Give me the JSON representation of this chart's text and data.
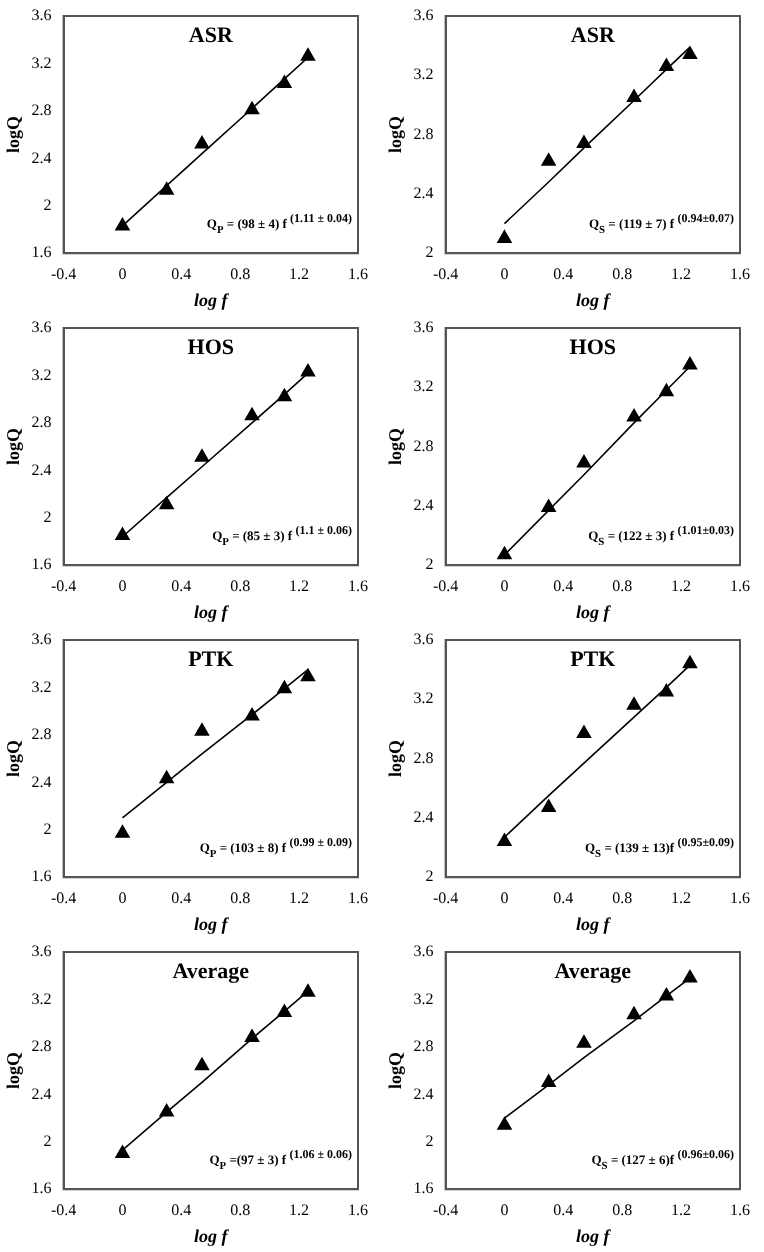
{
  "chart_data": [
    {
      "type": "scatter",
      "title": "ASR",
      "xlabel": "log f",
      "ylabel": "logQ",
      "x": [
        0,
        0.3,
        0.54,
        0.88,
        1.1,
        1.26
      ],
      "xlim": [
        -0.4,
        1.6
      ],
      "xticks": [
        -0.4,
        0,
        0.4,
        0.8,
        1.2,
        1.6
      ],
      "ylim": [
        1.6,
        3.6
      ],
      "yticks": [
        1.6,
        2,
        2.4,
        2.8,
        3.2,
        3.6
      ],
      "annotations": [
        "Q$_{P}$ = (98 ± 4) f $^{(1.11 ± 0.04)}$"
      ],
      "series": [
        {
          "type": "scatter",
          "marker": "triangle",
          "color": "#000000",
          "values": [
            1.83,
            2.13,
            2.52,
            2.81,
            3.03,
            3.26
          ]
        },
        {
          "type": "line",
          "marker": "none",
          "color": "#000000",
          "values": [
            1.83,
            2.17,
            2.44,
            2.82,
            3.07,
            3.25
          ]
        }
      ]
    },
    {
      "type": "scatter",
      "title": "ASR",
      "xlabel": "log f",
      "ylabel": "logQ",
      "x": [
        0,
        0.3,
        0.54,
        0.88,
        1.1,
        1.26
      ],
      "xlim": [
        -0.4,
        1.6
      ],
      "xticks": [
        -0.4,
        0,
        0.4,
        0.8,
        1.2,
        1.6
      ],
      "ylim": [
        2,
        3.6
      ],
      "yticks": [
        2,
        2.4,
        2.8,
        3.2,
        3.6
      ],
      "annotations": [
        "Q$_{S}$ = (119 ± 7) f $^{(0.94±0.07)}$"
      ],
      "series": [
        {
          "type": "scatter",
          "marker": "triangle",
          "color": "#000000",
          "values": [
            2.1,
            2.62,
            2.74,
            3.05,
            3.26,
            3.34
          ]
        },
        {
          "type": "line",
          "marker": "none",
          "color": "#000000",
          "values": [
            2.2,
            2.48,
            2.71,
            3.03,
            3.24,
            3.39
          ]
        }
      ]
    },
    {
      "type": "scatter",
      "title": "HOS",
      "xlabel": "log f",
      "ylabel": "logQ",
      "x": [
        0,
        0.3,
        0.54,
        0.88,
        1.1,
        1.26
      ],
      "xlim": [
        -0.4,
        1.6
      ],
      "xticks": [
        -0.4,
        0,
        0.4,
        0.8,
        1.2,
        1.6
      ],
      "ylim": [
        1.6,
        3.6
      ],
      "yticks": [
        1.6,
        2,
        2.4,
        2.8,
        3.2,
        3.6
      ],
      "annotations": [
        "Q$_{P}$ = (85 ± 3) f $^{(1.1 ± 0.06)}$"
      ],
      "series": [
        {
          "type": "scatter",
          "marker": "triangle",
          "color": "#000000",
          "values": [
            1.85,
            2.11,
            2.51,
            2.86,
            3.02,
            3.23
          ]
        },
        {
          "type": "line",
          "marker": "none",
          "color": "#000000",
          "values": [
            1.84,
            2.17,
            2.43,
            2.8,
            3.04,
            3.22
          ]
        }
      ]
    },
    {
      "type": "scatter",
      "title": "HOS",
      "xlabel": "log f",
      "ylabel": "logQ",
      "x": [
        0,
        0.3,
        0.54,
        0.88,
        1.1,
        1.26
      ],
      "xlim": [
        -0.4,
        1.6
      ],
      "xticks": [
        -0.4,
        0,
        0.4,
        0.8,
        1.2,
        1.6
      ],
      "ylim": [
        2,
        3.6
      ],
      "yticks": [
        2,
        2.4,
        2.8,
        3.2,
        3.6
      ],
      "annotations": [
        "Q$_{S}$ = (122 ± 3) f $^{(1.01±0.03)}$"
      ],
      "series": [
        {
          "type": "scatter",
          "marker": "triangle",
          "color": "#000000",
          "values": [
            2.07,
            2.39,
            2.69,
            3.0,
            3.17,
            3.35
          ]
        },
        {
          "type": "line",
          "marker": "none",
          "color": "#000000",
          "values": [
            2.07,
            2.37,
            2.61,
            2.96,
            3.18,
            3.34
          ]
        }
      ]
    },
    {
      "type": "scatter",
      "title": "PTK",
      "xlabel": "log f",
      "ylabel": "logQ",
      "x": [
        0,
        0.3,
        0.54,
        0.88,
        1.1,
        1.26
      ],
      "xlim": [
        -0.4,
        1.6
      ],
      "xticks": [
        -0.4,
        0,
        0.4,
        0.8,
        1.2,
        1.6
      ],
      "ylim": [
        1.6,
        3.6
      ],
      "yticks": [
        1.6,
        2,
        2.4,
        2.8,
        3.2,
        3.6
      ],
      "annotations": [
        "Q$_{P}$ = (103 ± 8) f $^{(0.99 ± 0.09)}$"
      ],
      "series": [
        {
          "type": "scatter",
          "marker": "triangle",
          "color": "#000000",
          "values": [
            1.97,
            2.43,
            2.83,
            2.96,
            3.19,
            3.29
          ]
        },
        {
          "type": "line",
          "marker": "none",
          "color": "#000000",
          "values": [
            2.1,
            2.4,
            2.64,
            2.97,
            3.19,
            3.35
          ]
        }
      ]
    },
    {
      "type": "scatter",
      "title": "PTK",
      "xlabel": "log f",
      "ylabel": "logQ",
      "x": [
        0,
        0.3,
        0.54,
        0.88,
        1.1,
        1.26
      ],
      "xlim": [
        -0.4,
        1.6
      ],
      "xticks": [
        -0.4,
        0,
        0.4,
        0.8,
        1.2,
        1.6
      ],
      "ylim": [
        2,
        3.6
      ],
      "yticks": [
        2,
        2.4,
        2.8,
        3.2,
        3.6
      ],
      "annotations": [
        "Q$_{S}$ = (139 ± 13)f $^{(0.95±0.09)}$"
      ],
      "series": [
        {
          "type": "scatter",
          "marker": "triangle",
          "color": "#000000",
          "values": [
            2.24,
            2.47,
            2.97,
            3.16,
            3.25,
            3.44
          ]
        },
        {
          "type": "line",
          "marker": "none",
          "color": "#000000",
          "values": [
            2.27,
            2.55,
            2.77,
            3.08,
            3.28,
            3.43
          ]
        }
      ]
    },
    {
      "type": "scatter",
      "title": "Average",
      "xlabel": "log f",
      "ylabel": "logQ",
      "x": [
        0,
        0.3,
        0.54,
        0.88,
        1.1,
        1.26
      ],
      "xlim": [
        -0.4,
        1.6
      ],
      "xticks": [
        -0.4,
        0,
        0.4,
        0.8,
        1.2,
        1.6
      ],
      "ylim": [
        1.6,
        3.6
      ],
      "yticks": [
        1.6,
        2,
        2.4,
        2.8,
        3.2,
        3.6
      ],
      "annotations": [
        "Q$_{P}$ =(97 ± 3) f $^{(1.06 ± 0.06)}$"
      ],
      "series": [
        {
          "type": "scatter",
          "marker": "triangle",
          "color": "#000000",
          "values": [
            1.9,
            2.25,
            2.64,
            2.88,
            3.09,
            3.26
          ]
        },
        {
          "type": "line",
          "marker": "none",
          "color": "#000000",
          "values": [
            1.93,
            2.25,
            2.5,
            2.87,
            3.1,
            3.27
          ]
        }
      ]
    },
    {
      "type": "scatter",
      "title": "Average",
      "xlabel": "log f",
      "ylabel": "logQ",
      "x": [
        0,
        0.3,
        0.54,
        0.88,
        1.1,
        1.26
      ],
      "xlim": [
        -0.4,
        1.6
      ],
      "xticks": [
        -0.4,
        0,
        0.4,
        0.8,
        1.2,
        1.6
      ],
      "ylim": [
        1.6,
        3.6
      ],
      "yticks": [
        1.6,
        2,
        2.4,
        2.8,
        3.2,
        3.6
      ],
      "annotations": [
        "Q$_{S}$ = (127 ± 6)f $^{(0.96±0.06)}$"
      ],
      "series": [
        {
          "type": "scatter",
          "marker": "triangle",
          "color": "#000000",
          "values": [
            2.14,
            2.5,
            2.83,
            3.07,
            3.23,
            3.38
          ]
        },
        {
          "type": "line",
          "marker": "none",
          "color": "#000000",
          "values": [
            2.2,
            2.48,
            2.71,
            3.02,
            3.23,
            3.38
          ]
        }
      ]
    }
  ]
}
